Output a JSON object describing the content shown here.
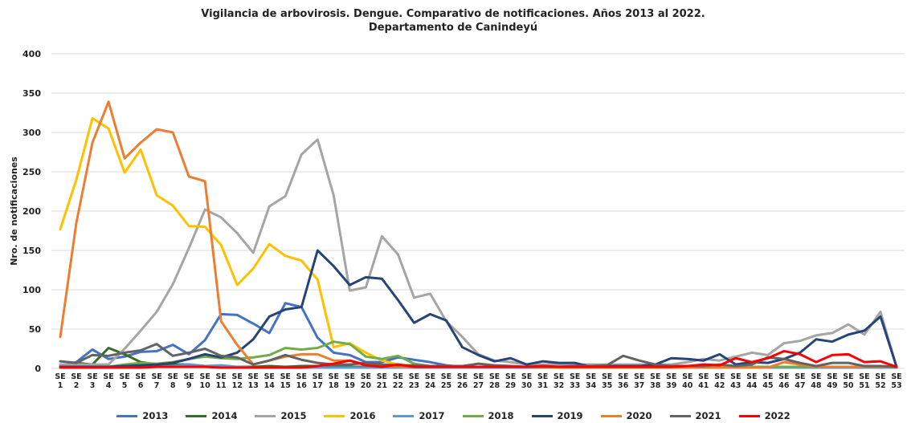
{
  "chart_data": {
    "type": "line",
    "title": "Vigilancia de arbovirosis. Dengue. Comparativo de notificaciones. Años 2013 al 2022.",
    "subtitle": "Departamento de Canindeyú",
    "ylabel": "Nro. de notificaciones",
    "ylim": [
      0,
      400
    ],
    "yticks": [
      0,
      50,
      100,
      150,
      200,
      250,
      300,
      350,
      400
    ],
    "grid": true,
    "legend": "bottom",
    "categories": [
      "SE 1",
      "SE 2",
      "SE 3",
      "SE 4",
      "SE 5",
      "SE 6",
      "SE 7",
      "SE 8",
      "SE 9",
      "SE 10",
      "SE 11",
      "SE 12",
      "SE 13",
      "SE 14",
      "SE 15",
      "SE 16",
      "SE 17",
      "SE 18",
      "SE 19",
      "SE 20",
      "SE 21",
      "SE 22",
      "SE 23",
      "SE 24",
      "SE 25",
      "SE 26",
      "SE 27",
      "SE 28",
      "SE 29",
      "SE 30",
      "SE 31",
      "SE 32",
      "SE 33",
      "SE 34",
      "SE 35",
      "SE 36",
      "SE 37",
      "SE 38",
      "SE 39",
      "SE 40",
      "SE 41",
      "SE 42",
      "SE 43",
      "SE 44",
      "SE 45",
      "SE 46",
      "SE 47",
      "SE 48",
      "SE 49",
      "SE 50",
      "SE 51",
      "SE 52",
      "SE 53"
    ],
    "series": [
      {
        "name": "2013",
        "color": "#4472c4",
        "values": [
          2,
          8,
          24,
          12,
          15,
          21,
          22,
          30,
          18,
          36,
          69,
          68,
          57,
          45,
          83,
          78,
          39,
          20,
          17,
          8,
          8,
          14,
          11,
          8,
          4,
          2,
          2,
          1,
          1,
          1,
          1,
          1,
          1,
          1,
          1,
          1,
          1,
          1,
          1,
          1,
          1,
          1,
          1,
          1,
          1,
          1,
          1,
          1,
          1,
          1,
          1,
          1,
          1
        ]
      },
      {
        "name": "2014",
        "color": "#3a6b2a",
        "values": [
          3,
          7,
          5,
          26,
          18,
          8,
          5,
          5,
          5,
          3,
          2,
          2,
          2,
          3,
          2,
          3,
          3,
          2,
          2,
          2,
          2,
          2,
          2,
          1,
          1,
          1,
          1,
          1,
          1,
          1,
          1,
          1,
          1,
          1,
          1,
          1,
          1,
          1,
          1,
          1,
          1,
          1,
          1,
          1,
          1,
          1,
          1,
          1,
          1,
          1,
          1,
          1,
          1
        ]
      },
      {
        "name": "2015",
        "color": "#a5a5a5",
        "values": [
          5,
          5,
          5,
          5,
          25,
          48,
          72,
          107,
          153,
          202,
          192,
          172,
          147,
          206,
          219,
          272,
          291,
          220,
          99,
          103,
          168,
          145,
          90,
          95,
          60,
          40,
          18,
          10,
          8,
          5,
          5,
          5,
          5,
          5,
          5,
          5,
          5,
          5,
          5,
          8,
          12,
          10,
          15,
          20,
          17,
          32,
          35,
          42,
          45,
          56,
          43,
          72,
          2
        ]
      },
      {
        "name": "2016",
        "color": "#ffc000",
        "values": [
          177,
          240,
          318,
          305,
          249,
          278,
          220,
          207,
          181,
          180,
          157,
          106,
          127,
          158,
          143,
          137,
          113,
          27,
          32,
          20,
          10,
          5,
          3,
          2,
          1,
          1,
          1,
          1,
          1,
          1,
          1,
          1,
          1,
          1,
          1,
          1,
          1,
          1,
          1,
          1,
          1,
          1,
          1,
          1,
          1,
          1,
          1,
          1,
          1,
          1,
          1,
          1,
          1
        ]
      },
      {
        "name": "2017",
        "color": "#5b9bd5",
        "values": [
          2,
          2,
          2,
          2,
          2,
          2,
          2,
          3,
          5,
          3,
          4,
          2,
          1,
          1,
          1,
          1,
          1,
          1,
          1,
          1,
          1,
          1,
          1,
          1,
          1,
          1,
          1,
          1,
          1,
          1,
          1,
          1,
          1,
          1,
          1,
          1,
          1,
          1,
          1,
          1,
          1,
          1,
          1,
          1,
          1,
          1,
          1,
          1,
          1,
          1,
          1,
          1,
          1
        ]
      },
      {
        "name": "2018",
        "color": "#70ad47",
        "values": [
          2,
          2,
          2,
          2,
          5,
          7,
          6,
          8,
          12,
          15,
          13,
          12,
          14,
          17,
          26,
          24,
          26,
          34,
          31,
          15,
          12,
          16,
          6,
          3,
          2,
          2,
          2,
          2,
          2,
          2,
          2,
          2,
          2,
          2,
          2,
          2,
          2,
          2,
          2,
          2,
          2,
          2,
          2,
          2,
          2,
          2,
          2,
          2,
          2,
          2,
          2,
          2,
          2
        ]
      },
      {
        "name": "2019",
        "color": "#264478",
        "values": [
          2,
          2,
          2,
          2,
          3,
          4,
          5,
          7,
          12,
          18,
          14,
          20,
          37,
          66,
          75,
          78,
          150,
          130,
          106,
          116,
          114,
          87,
          58,
          69,
          61,
          27,
          17,
          9,
          13,
          5,
          9,
          7,
          7,
          2,
          3,
          3,
          3,
          5,
          13,
          12,
          10,
          18,
          5,
          8,
          7,
          12,
          20,
          37,
          34,
          43,
          48,
          66,
          2
        ]
      },
      {
        "name": "2020",
        "color": "#ed7d31",
        "values": [
          40,
          185,
          287,
          339,
          267,
          287,
          304,
          300,
          244,
          238,
          60,
          30,
          5,
          10,
          15,
          18,
          18,
          10,
          10,
          5,
          3,
          2,
          2,
          2,
          2,
          2,
          2,
          2,
          2,
          2,
          1,
          1,
          1,
          1,
          1,
          1,
          1,
          1,
          1,
          1,
          1,
          1,
          1,
          1,
          1,
          8,
          5,
          2,
          2,
          2,
          2,
          2,
          2
        ]
      },
      {
        "name": "2021",
        "color": "#636363",
        "values": [
          9,
          7,
          17,
          16,
          20,
          23,
          31,
          16,
          20,
          25,
          16,
          14,
          5,
          10,
          17,
          11,
          7,
          5,
          5,
          7,
          5,
          4,
          4,
          3,
          3,
          3,
          6,
          4,
          3,
          2,
          2,
          2,
          3,
          3,
          4,
          16,
          10,
          5,
          3,
          3,
          3,
          5,
          3,
          5,
          14,
          12,
          7,
          3,
          7,
          7,
          3,
          3,
          2
        ]
      },
      {
        "name": "2022",
        "color": "#ff0000",
        "values": [
          1,
          1,
          1,
          1,
          1,
          1,
          2,
          2,
          2,
          2,
          1,
          1,
          1,
          1,
          1,
          1,
          3,
          6,
          10,
          4,
          2,
          5,
          2,
          2,
          2,
          2,
          2,
          2,
          2,
          2,
          3,
          2,
          2,
          2,
          2,
          2,
          2,
          2,
          2,
          3,
          5,
          4,
          13,
          8,
          13,
          22,
          18,
          8,
          17,
          18,
          8,
          9,
          2
        ]
      }
    ]
  }
}
